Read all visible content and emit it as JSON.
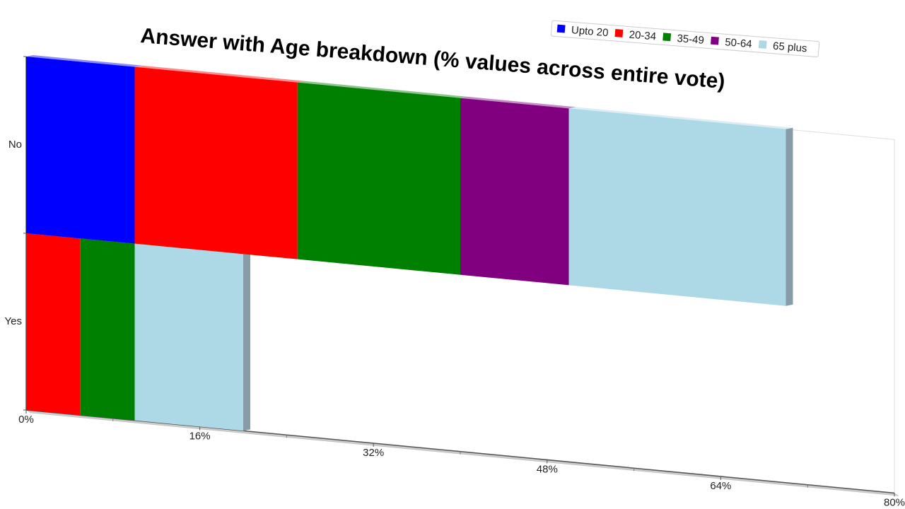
{
  "chart_data": {
    "type": "bar",
    "orientation": "horizontal",
    "stacked": true,
    "title": "Answer with Age breakdown (% values across entire vote)",
    "categories": [
      "Yes",
      "No"
    ],
    "series": [
      {
        "name": "Upto 20",
        "color": "#0000ff",
        "values": [
          0,
          10.0
        ]
      },
      {
        "name": "20-34",
        "color": "#ff0000",
        "values": [
          5.0,
          15.0
        ]
      },
      {
        "name": "35-49",
        "color": "#008000",
        "values": [
          5.0,
          15.0
        ]
      },
      {
        "name": "50-64",
        "color": "#800080",
        "values": [
          0,
          10.0
        ]
      },
      {
        "name": "65 plus",
        "color": "#add8e6",
        "values": [
          10.0,
          20.0
        ]
      }
    ],
    "xlim": [
      0,
      80
    ],
    "x_ticks": [
      "0%",
      "16%",
      "32%",
      "48%",
      "64%",
      "80%"
    ],
    "legend_position": "top-right",
    "grid": false
  }
}
